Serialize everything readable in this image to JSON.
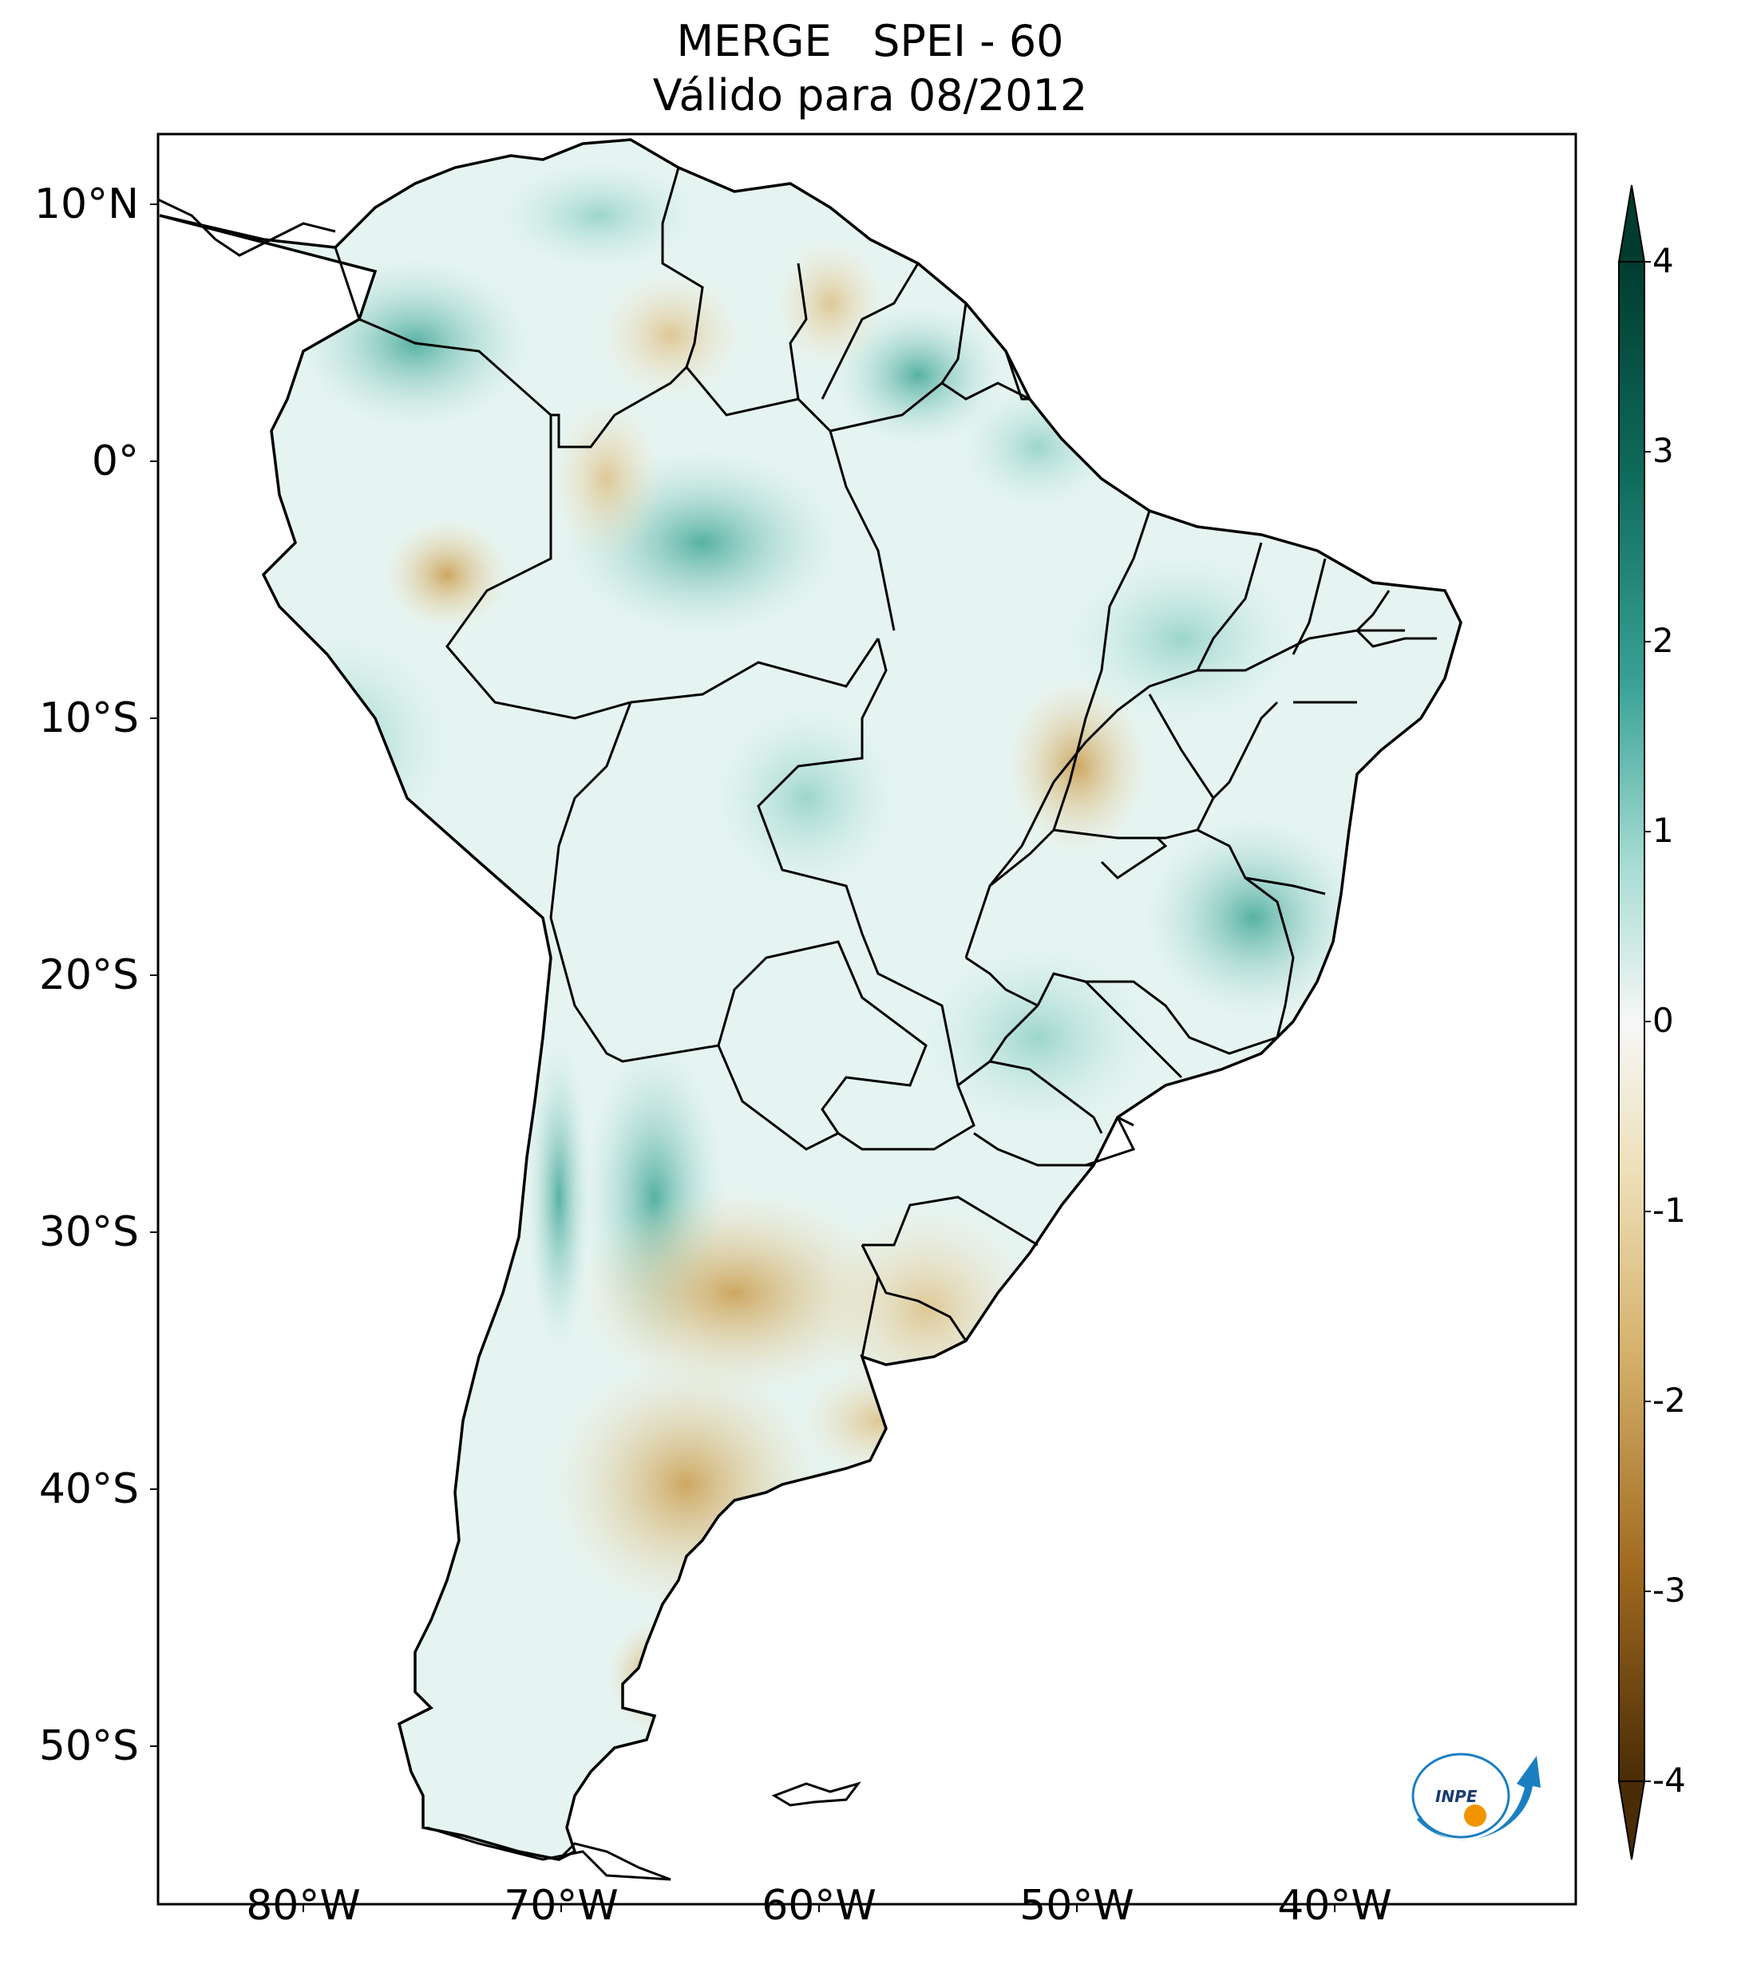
{
  "title": {
    "line1": "MERGE   SPEI - 60",
    "line2": "Válido para 08/2012"
  },
  "map": {
    "lat_labels": [
      "10°N",
      "0°",
      "10°S",
      "20°S",
      "30°S",
      "40°S",
      "50°S"
    ],
    "lon_labels": [
      "80°W",
      "70°W",
      "60°W",
      "50°W",
      "40°W"
    ]
  },
  "colorbar": {
    "ticks": [
      "4",
      "3",
      "2",
      "1",
      "0",
      "-1",
      "-2",
      "-3",
      "-4"
    ],
    "colors": {
      "wet_max": "#013c30",
      "wet_mid": "#2a9283",
      "wet_low": "#bde6df",
      "neutral": "#f5f5f5",
      "dry_low": "#eddcb0",
      "dry_mid": "#c99a48",
      "dry_max": "#4a2c06"
    }
  },
  "logo": {
    "text": "INPE",
    "icon": "inpe-logo-icon"
  }
}
